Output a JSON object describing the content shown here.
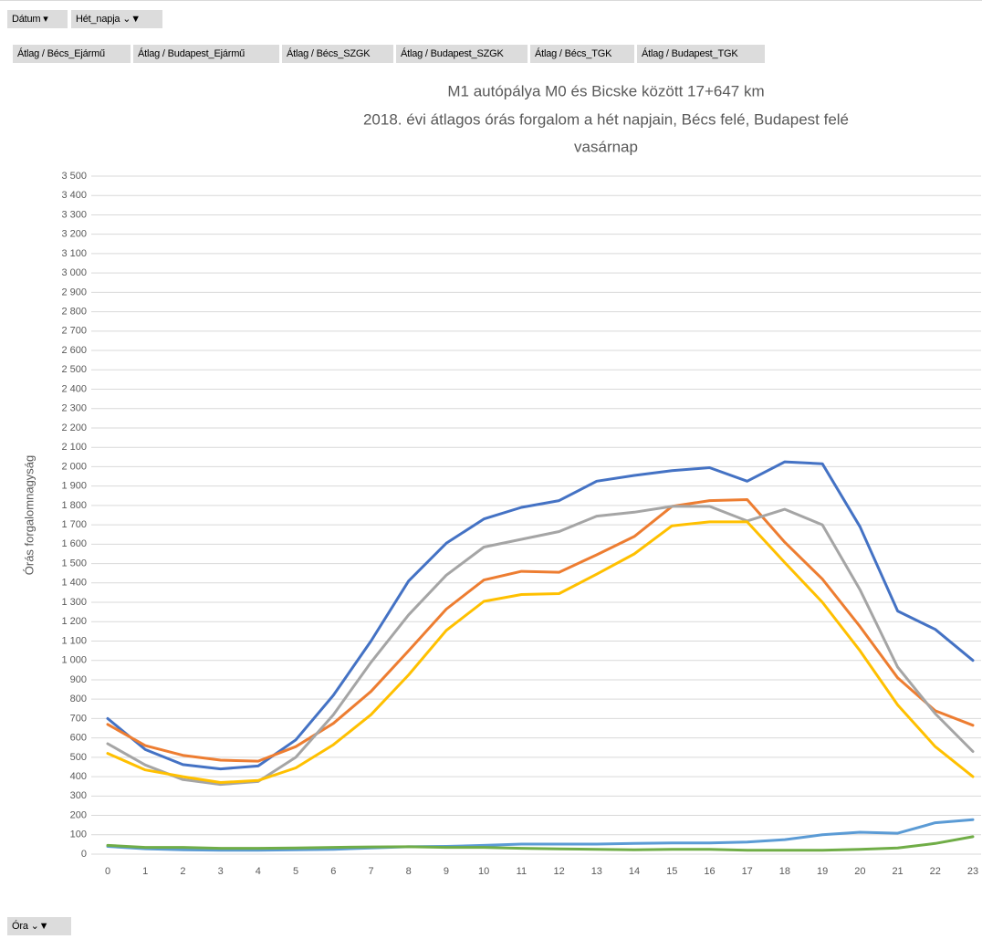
{
  "chart_data": {
    "type": "line",
    "title_lines": [
      "M1 autópálya M0 és Bicske között 17+647 km",
      "2018. évi átlagos órás forgalom a hét napjain, Bécs felé, Budapest felé",
      "vasárnap"
    ],
    "ylabel": "Órás forgalomnagyság",
    "filters": [
      "Dátum",
      "Hét_napja"
    ],
    "axis_field": "Óra",
    "x": [
      0,
      1,
      2,
      3,
      4,
      5,
      6,
      7,
      8,
      9,
      10,
      11,
      12,
      13,
      14,
      15,
      16,
      17,
      18,
      19,
      20,
      21,
      22,
      23
    ],
    "xlim": [
      0,
      23
    ],
    "ylim": [
      0,
      3500
    ],
    "yticks": [
      0,
      100,
      200,
      300,
      400,
      500,
      600,
      700,
      800,
      900,
      {
        "value": 1000,
        "label": "1 000"
      },
      {
        "value": 1100,
        "label": "1 100"
      },
      {
        "value": 1200,
        "label": "1 200"
      },
      {
        "value": 1300,
        "label": "1 300"
      },
      {
        "value": 1400,
        "label": "1 400"
      },
      {
        "value": 1500,
        "label": "1 500"
      },
      {
        "value": 1600,
        "label": "1 600"
      },
      {
        "value": 1700,
        "label": "1 700"
      },
      {
        "value": 1800,
        "label": "1 800"
      },
      {
        "value": 1900,
        "label": "1 900"
      },
      {
        "value": 2000,
        "label": "2 000"
      },
      {
        "value": 2100,
        "label": "2 100"
      },
      {
        "value": 2200,
        "label": "2 200"
      },
      {
        "value": 2300,
        "label": "2 300"
      },
      {
        "value": 2400,
        "label": "2 400"
      },
      {
        "value": 2500,
        "label": "2 500"
      },
      {
        "value": 2600,
        "label": "2 600"
      },
      {
        "value": 2700,
        "label": "2 700"
      },
      {
        "value": 2800,
        "label": "2 800"
      },
      {
        "value": 2900,
        "label": "2 900"
      },
      {
        "value": 3000,
        "label": "3 000"
      },
      {
        "value": 3100,
        "label": "3 100"
      },
      {
        "value": 3200,
        "label": "3 200"
      },
      {
        "value": 3300,
        "label": "3 300"
      },
      {
        "value": 3400,
        "label": "3 400"
      },
      {
        "value": 3500,
        "label": "3 500"
      }
    ],
    "grid": true,
    "series": [
      {
        "name": "Átlag / Bécs_Ejármű",
        "color": "#4472c4",
        "values": [
          700,
          540,
          462,
          440,
          455,
          590,
          820,
          1100,
          1410,
          1605,
          1730,
          1790,
          1825,
          1925,
          1955,
          1980,
          1995,
          1925,
          2025,
          2015,
          1690,
          1255,
          1160,
          1000
        ]
      },
      {
        "name": "Átlag / Budapest_Ejármű",
        "color": "#ed7d31",
        "values": [
          670,
          560,
          510,
          485,
          480,
          555,
          675,
          840,
          1050,
          1265,
          1415,
          1460,
          1455,
          1545,
          1640,
          1795,
          1825,
          1830,
          1610,
          1420,
          1175,
          910,
          740,
          665
        ]
      },
      {
        "name": "Átlag / Bécs_SZGK",
        "color": "#a5a5a5",
        "values": [
          570,
          460,
          385,
          360,
          375,
          500,
          720,
          990,
          1235,
          1440,
          1585,
          1625,
          1665,
          1745,
          1765,
          1795,
          1795,
          1720,
          1780,
          1700,
          1365,
          965,
          725,
          530
        ]
      },
      {
        "name": "Átlag / Budapest_SZGK",
        "color": "#ffc000",
        "values": [
          520,
          435,
          400,
          370,
          380,
          445,
          565,
          720,
          925,
          1155,
          1305,
          1340,
          1345,
          1445,
          1550,
          1695,
          1715,
          1715,
          1505,
          1300,
          1050,
          770,
          555,
          400
        ]
      },
      {
        "name": "Átlag / Bécs_TGK",
        "color": "#5b9bd5",
        "values": [
          40,
          28,
          22,
          20,
          20,
          22,
          25,
          32,
          38,
          40,
          45,
          52,
          52,
          52,
          55,
          58,
          58,
          62,
          75,
          100,
          113,
          108,
          162,
          178
        ]
      },
      {
        "name": "Átlag / Budapest_TGK",
        "color": "#70ad47",
        "values": [
          45,
          35,
          35,
          30,
          30,
          32,
          35,
          37,
          38,
          35,
          35,
          30,
          27,
          25,
          22,
          25,
          25,
          20,
          20,
          20,
          25,
          32,
          55,
          90
        ]
      }
    ]
  }
}
